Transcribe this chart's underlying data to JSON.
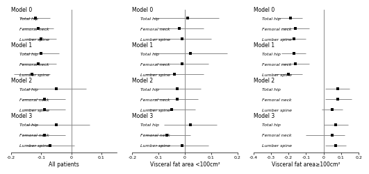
{
  "panels": [
    {
      "title": "All patients",
      "xlim": [
        -0.2,
        0.15
      ],
      "xticks": [
        -0.2,
        -0.1,
        0,
        0.1
      ],
      "xticklabels": [
        "-0.2",
        "-0.1",
        "0",
        "0.1"
      ],
      "vline": 0,
      "rows": [
        {
          "model": "Model 0",
          "label": "Total hip",
          "mean": -0.12,
          "lo": -0.17,
          "hi": -0.07
        },
        {
          "model": null,
          "label": "Femoral neck",
          "mean": -0.11,
          "lo": -0.16,
          "hi": -0.06
        },
        {
          "model": null,
          "label": "Lumber spine",
          "mean": -0.1,
          "lo": -0.15,
          "hi": -0.05
        },
        {
          "model": "Model 1",
          "label": "Total hip",
          "mean": -0.1,
          "lo": -0.16,
          "hi": -0.04
        },
        {
          "model": null,
          "label": "Femoral neck",
          "mean": -0.11,
          "lo": -0.17,
          "hi": -0.05
        },
        {
          "model": null,
          "label": "Lumber spine",
          "mean": -0.13,
          "lo": -0.19,
          "hi": -0.07
        },
        {
          "model": "Model 2",
          "label": "Total hip",
          "mean": -0.05,
          "lo": -0.15,
          "hi": 0.05
        },
        {
          "model": null,
          "label": "Femoral neck",
          "mean": -0.09,
          "lo": -0.16,
          "hi": -0.02
        },
        {
          "model": null,
          "label": "Lumber spine",
          "mean": -0.09,
          "lo": -0.16,
          "hi": -0.02
        },
        {
          "model": "Model 3",
          "label": "Total hip",
          "mean": -0.05,
          "lo": -0.15,
          "hi": 0.06
        },
        {
          "model": null,
          "label": "Femoral neck",
          "mean": -0.09,
          "lo": -0.16,
          "hi": -0.02
        },
        {
          "model": null,
          "label": "Lumber spine",
          "mean": -0.07,
          "lo": -0.15,
          "hi": 0.01
        }
      ]
    },
    {
      "title": "Visceral fat area <100cm²",
      "xlim": [
        -0.2,
        0.2
      ],
      "xticks": [
        -0.2,
        -0.1,
        0,
        0.1,
        0.2
      ],
      "xticklabels": [
        "-0.2",
        "-0.1",
        "0",
        "0.1",
        "0.2"
      ],
      "vline": 0,
      "rows": [
        {
          "model": "Model 0",
          "label": "Total hip",
          "mean": 0.01,
          "lo": -0.12,
          "hi": 0.13
        },
        {
          "model": null,
          "label": "Femoral neck",
          "mean": -0.02,
          "lo": -0.1,
          "hi": 0.07
        },
        {
          "model": null,
          "label": "Lumber spine",
          "mean": -0.01,
          "lo": -0.12,
          "hi": 0.1
        },
        {
          "model": "Model 1",
          "label": "Total hip",
          "mean": 0.02,
          "lo": -0.12,
          "hi": 0.16
        },
        {
          "model": null,
          "label": "Femoral neck",
          "mean": -0.01,
          "lo": -0.11,
          "hi": 0.09
        },
        {
          "model": null,
          "label": "Lumber spine",
          "mean": -0.04,
          "lo": -0.15,
          "hi": 0.07
        },
        {
          "model": "Model 2",
          "label": "Total hip",
          "mean": -0.03,
          "lo": -0.11,
          "hi": 0.06
        },
        {
          "model": null,
          "label": "Femoral neck",
          "mean": -0.03,
          "lo": -0.12,
          "hi": 0.05
        },
        {
          "model": null,
          "label": "Lumber spine",
          "mean": -0.05,
          "lo": -0.14,
          "hi": 0.04
        },
        {
          "model": "Model 3",
          "label": "Total hip",
          "mean": 0.02,
          "lo": -0.08,
          "hi": 0.12
        },
        {
          "model": null,
          "label": "Femoral neck",
          "mean": -0.07,
          "lo": -0.15,
          "hi": 0.02
        },
        {
          "model": null,
          "label": "Lumber spine",
          "mean": -0.01,
          "lo": -0.11,
          "hi": 0.09
        }
      ]
    },
    {
      "title": "Visceral fat area≥100cm²",
      "xlim": [
        -0.4,
        0.2
      ],
      "xticks": [
        -0.4,
        -0.3,
        -0.2,
        -0.1,
        0,
        0.1,
        0.2
      ],
      "xticklabels": [
        "-0.4",
        "-0.3",
        "-0.2",
        "-0.1",
        "0",
        "0.1",
        "0.2"
      ],
      "vline": 0,
      "rows": [
        {
          "model": "Model 0",
          "label": "Total hip",
          "mean": -0.19,
          "lo": -0.26,
          "hi": -0.12
        },
        {
          "model": null,
          "label": "Femoral neck",
          "mean": -0.16,
          "lo": -0.24,
          "hi": -0.08
        },
        {
          "model": null,
          "label": "Lumber spine",
          "mean": -0.17,
          "lo": -0.24,
          "hi": -0.1
        },
        {
          "model": "Model 1",
          "label": "Total hip",
          "mean": -0.17,
          "lo": -0.24,
          "hi": -0.1
        },
        {
          "model": null,
          "label": "Femoral neck",
          "mean": -0.16,
          "lo": -0.24,
          "hi": -0.08
        },
        {
          "model": null,
          "label": "Lumber spine",
          "mean": -0.2,
          "lo": -0.28,
          "hi": -0.12
        },
        {
          "model": "Model 2",
          "label": "Total hip",
          "mean": 0.08,
          "lo": 0.01,
          "hi": 0.15
        },
        {
          "model": null,
          "label": "Femoral neck",
          "mean": 0.08,
          "lo": 0.01,
          "hi": 0.16
        },
        {
          "model": null,
          "label": "Lumber spine",
          "mean": 0.05,
          "lo": -0.01,
          "hi": 0.11
        },
        {
          "model": "Model 3",
          "label": "Total hip",
          "mean": 0.07,
          "lo": 0.0,
          "hi": 0.14
        },
        {
          "model": null,
          "label": "Femoral neck",
          "mean": 0.05,
          "lo": -0.1,
          "hi": 0.12
        },
        {
          "model": null,
          "label": "Lumber spine",
          "mean": 0.07,
          "lo": 0.01,
          "hi": 0.13
        }
      ]
    }
  ],
  "dot_color": "#000000",
  "line_color": "#888888",
  "dot_size": 2.5,
  "label_fontsize": 4.5,
  "model_fontsize": 5.5,
  "title_fontsize": 5.5,
  "tick_fontsize": 4.5
}
